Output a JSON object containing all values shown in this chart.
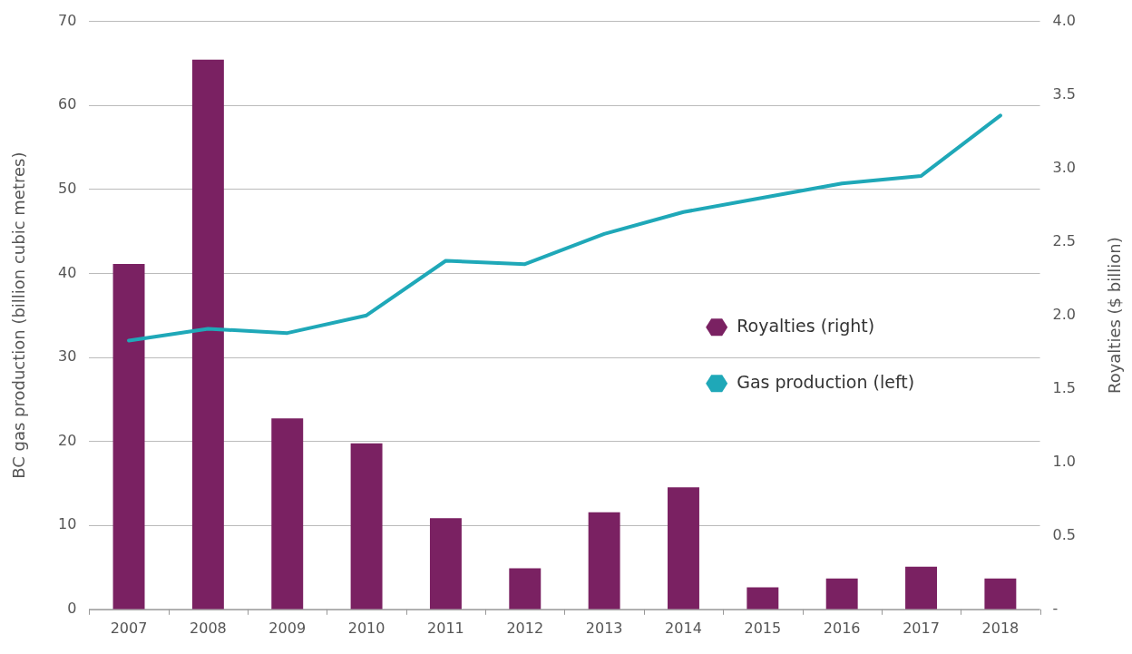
{
  "chart_data": {
    "type": "bar",
    "ylabel": "BC gas production (billion cubic metres)",
    "y2label": "Royalties ($ billion)",
    "categories": [
      "2007",
      "2008",
      "2009",
      "2010",
      "2011",
      "2012",
      "2013",
      "2014",
      "2015",
      "2016",
      "2017",
      "2018"
    ],
    "series": [
      {
        "name": "Royalties (right)",
        "axis": "y2",
        "color": "#7a2162",
        "values": [
          2.35,
          3.74,
          1.3,
          1.13,
          0.62,
          0.28,
          0.66,
          0.83,
          0.15,
          0.21,
          0.29,
          0.21
        ]
      },
      {
        "name": "Gas production (left)",
        "type": "line",
        "color": "#1fa8b8",
        "values": [
          32,
          33.4,
          32.9,
          35,
          41.5,
          41.1,
          44.7,
          47.3,
          49,
          50.7,
          51.6,
          58.8
        ]
      }
    ],
    "ylim": [
      0,
      70
    ],
    "yticks": [
      0,
      10,
      20,
      30,
      40,
      50,
      60,
      70
    ],
    "y2lim": [
      0,
      4
    ],
    "y2ticks": [
      {
        "value": 0,
        "label": "-"
      },
      {
        "value": 0.5,
        "label": "0.5"
      },
      {
        "value": 1,
        "label": "1.0"
      },
      {
        "value": 1.5,
        "label": "1.5"
      },
      {
        "value": 2,
        "label": "2.0"
      },
      {
        "value": 2.5,
        "label": "2.5"
      },
      {
        "value": 3,
        "label": "3.0"
      },
      {
        "value": 3.5,
        "label": "3.5"
      },
      {
        "value": 4,
        "label": "4.0"
      }
    ],
    "grid": "y",
    "legend": "center right",
    "marker": "none",
    "line_style": "solid"
  }
}
